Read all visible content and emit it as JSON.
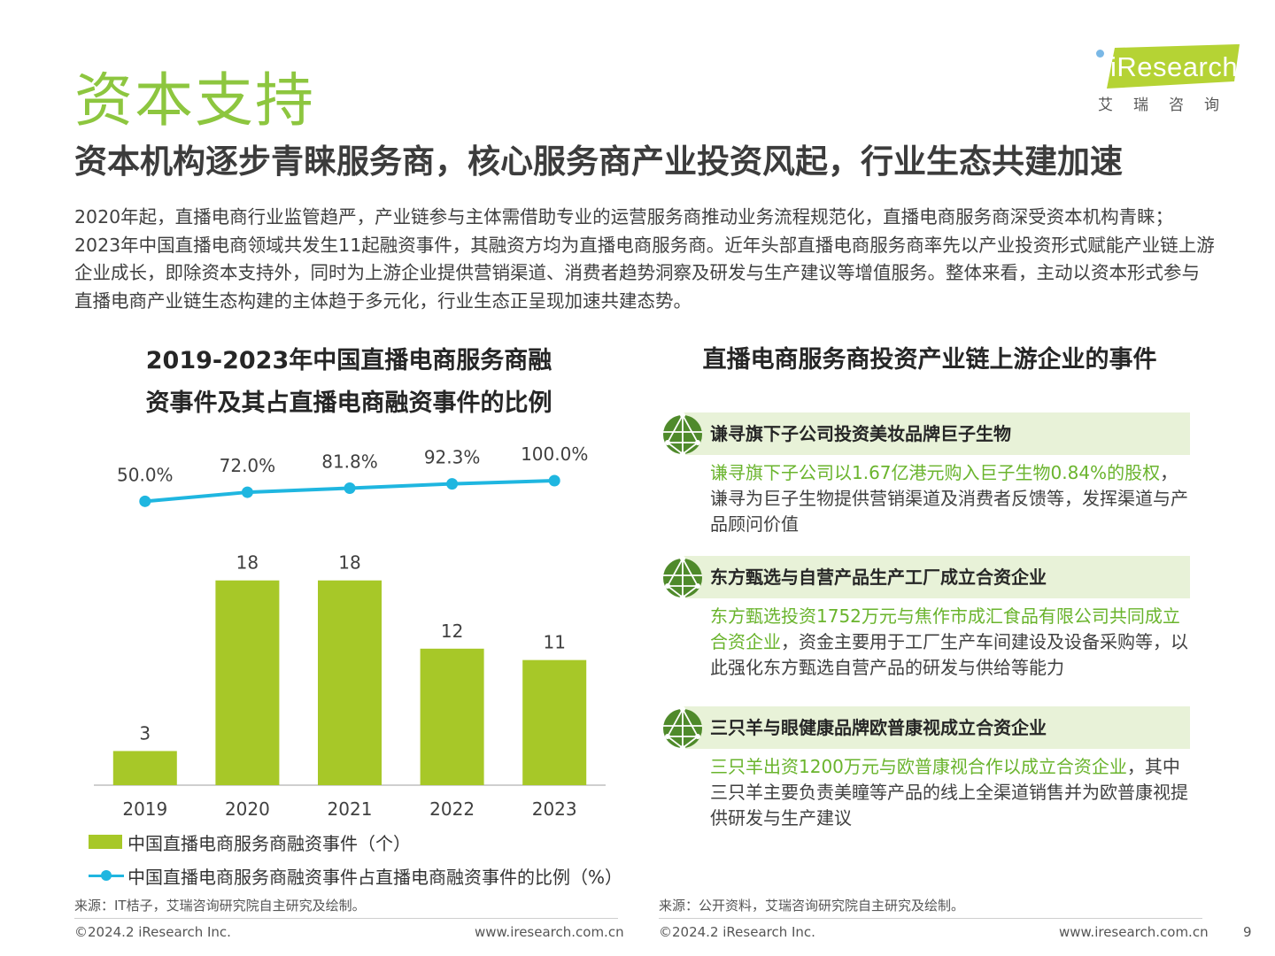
{
  "page": {
    "title": "资本支持",
    "subtitle": "资本机构逐步青睐服务商，核心服务商产业投资风起，行业生态共建加速",
    "intro": "2020年起，直播电商行业监管趋严，产业链参与主体需借助专业的运营服务商推动业务流程规范化，直播电商服务商深受资本机构青睐；2023年中国直播电商领域共发生11起融资事件，其融资方均为直播电商服务商。近年头部直播电商服务商率先以产业投资形式赋能产业链上游企业成长，即除资本支持外，同时为上游企业提供营销渠道、消费者趋势洞察及研发与生产建议等增值服务。整体来看，主动以资本形式参与直播电商产业链生态构建的主体趋于多元化，行业生态正呈现加速共建态势。",
    "page_number": "9"
  },
  "logo": {
    "text": "iResearch",
    "sub": "艾瑞咨询"
  },
  "chart_data": {
    "type": "bar",
    "title_line1": "2019-2023年中国直播电商服务商融",
    "title_line2": "资事件及其占直播电商融资事件的比例",
    "categories": [
      "2019",
      "2020",
      "2021",
      "2022",
      "2023"
    ],
    "series": [
      {
        "name": "中国直播电商服务商融资事件（个）",
        "type": "bar",
        "values": [
          3,
          18,
          18,
          12,
          11
        ],
        "labels": [
          "3",
          "18",
          "18",
          "12",
          "11"
        ],
        "color": "#a7c828"
      },
      {
        "name": "中国直播电商服务商融资事件占直播电商融资事件的比例（%）",
        "type": "line",
        "values": [
          50.0,
          72.0,
          81.8,
          92.3,
          100.0
        ],
        "labels": [
          "50.0%",
          "72.0%",
          "81.8%",
          "92.3%",
          "100.0%"
        ],
        "color": "#1fb6e0"
      }
    ],
    "bar_ylim": [
      0,
      20
    ],
    "line_ylim": [
      0,
      100
    ],
    "legend_position": "bottom",
    "grid": false,
    "source": "来源：IT桔子，艾瑞咨询研究院自主研究及绘制。"
  },
  "events_panel": {
    "title": "直播电商服务商投资产业链上游企业的事件",
    "items": [
      {
        "heading": "谦寻旗下子公司投资美妆品牌巨子生物",
        "highlight": "谦寻旗下子公司以1.67亿港元购入巨子生物0.84%的股权",
        "rest": "，谦寻为巨子生物提供营销渠道及消费者反馈等，发挥渠道与产品顾问价值"
      },
      {
        "heading": "东方甄选与自营产品生产工厂成立合资企业",
        "highlight": "东方甄选投资1752万元与焦作市成汇食品有限公司共同成立合资企业",
        "rest": "，资金主要用于工厂生产车间建设及设备采购等，以此强化东方甄选自营产品的研发与供给等能力"
      },
      {
        "heading": "三只羊与眼健康品牌欧普康视成立合资企业",
        "highlight": "三只羊出资1200万元与欧普康视合作以成立合资企业",
        "rest": "，其中三只羊主要负责美瞳等产品的线上全渠道销售并为欧普康视提供研发与生产建议"
      }
    ],
    "source": "来源：公开资料，艾瑞咨询研究院自主研究及绘制。"
  },
  "footer": {
    "copyright": "©2024.2 iResearch Inc.",
    "website": "www.iresearch.com.cn"
  },
  "colors": {
    "accent_green": "#8dc63f",
    "bar_green": "#a7c828",
    "line_blue": "#1fb6e0",
    "panel_bg": "#e8f2d8",
    "highlight": "#6ab42d",
    "icon_green": "#4f8a2b"
  }
}
